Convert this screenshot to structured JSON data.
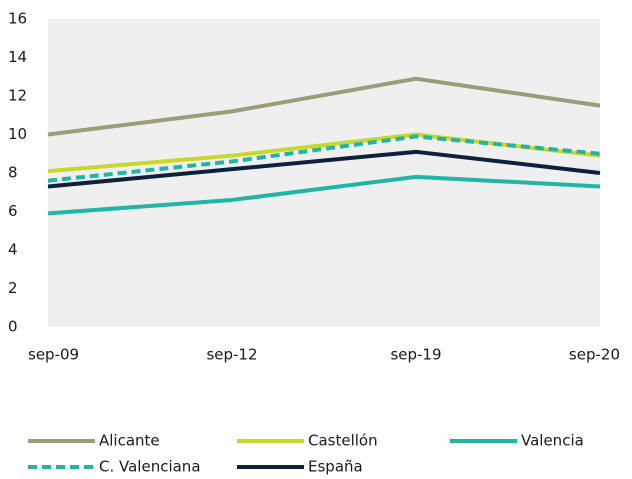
{
  "chart_data": {
    "type": "line",
    "categories": [
      "sep-09",
      "sep-12",
      "sep-19",
      "sep-20"
    ],
    "series": [
      {
        "name": "Alicante",
        "color": "#9c9b7a",
        "values": [
          10.0,
          11.2,
          12.9,
          11.5
        ]
      },
      {
        "name": "Castellón",
        "color": "#c8d72b",
        "values": [
          8.1,
          8.9,
          10.0,
          8.9
        ]
      },
      {
        "name": "Valencia",
        "color": "#22b5a6",
        "values": [
          5.9,
          6.6,
          7.8,
          7.3
        ]
      },
      {
        "name": "C. Valenciana",
        "color": "#22b5a6",
        "dashed": true,
        "values": [
          7.6,
          8.6,
          9.9,
          9.0
        ]
      },
      {
        "name": "España",
        "color": "#0f203d",
        "values": [
          7.3,
          8.2,
          9.1,
          8.0
        ]
      }
    ],
    "ylim": [
      0,
      16
    ],
    "yticks": [
      0,
      2,
      4,
      6,
      8,
      10,
      12,
      14,
      16
    ],
    "plot_background": "#efefef"
  }
}
